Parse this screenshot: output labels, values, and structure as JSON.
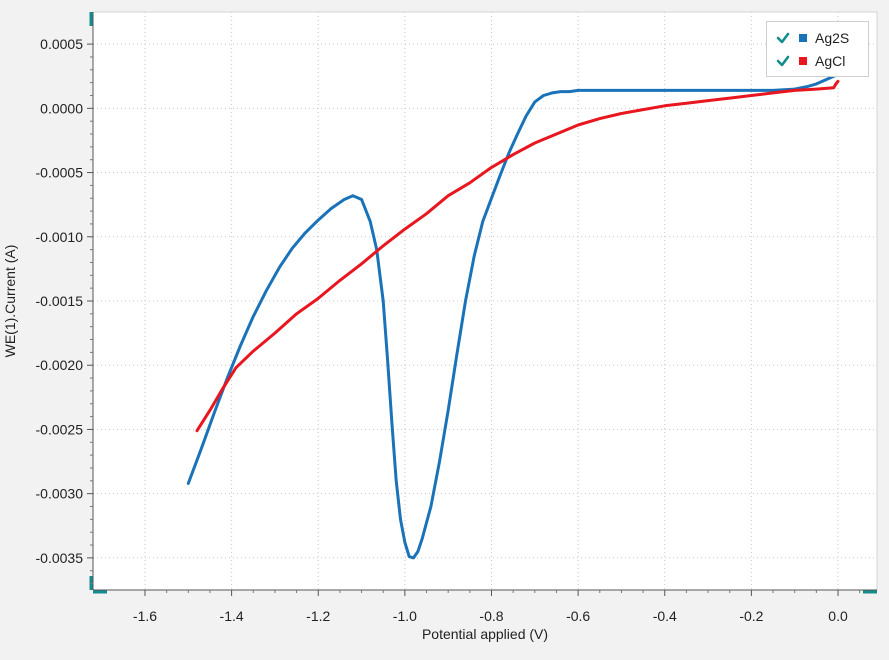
{
  "chart_data": {
    "type": "line",
    "xlabel": "Potential applied (V)",
    "ylabel": "WE(1).Current (A)",
    "xlim": [
      -1.72,
      0.09
    ],
    "ylim": [
      -0.00375,
      0.00075
    ],
    "x_ticks": [
      -1.6,
      -1.4,
      -1.2,
      -1.0,
      -0.8,
      -0.6,
      -0.4,
      -0.2,
      0.0
    ],
    "x_tick_labels": [
      "-1.6",
      "-1.4",
      "-1.2",
      "-1.0",
      "-0.8",
      "-0.6",
      "-0.4",
      "-0.2",
      "0.0"
    ],
    "y_ticks": [
      0.0005,
      0.0,
      -0.0005,
      -0.001,
      -0.0015,
      -0.002,
      -0.0025,
      -0.003,
      -0.0035
    ],
    "y_tick_labels": [
      "0.0005",
      "0.0000",
      "-0.0005",
      "-0.0010",
      "-0.0015",
      "-0.0020",
      "-0.0025",
      "-0.0030",
      "-0.0035"
    ],
    "grid": true,
    "legend_position": "top-right",
    "series": [
      {
        "name": "Ag2S",
        "color": "#1a73b8",
        "x": [
          -1.5,
          -1.47,
          -1.44,
          -1.41,
          -1.38,
          -1.35,
          -1.32,
          -1.29,
          -1.26,
          -1.23,
          -1.2,
          -1.17,
          -1.14,
          -1.12,
          -1.1,
          -1.08,
          -1.065,
          -1.05,
          -1.04,
          -1.03,
          -1.02,
          -1.01,
          -1.0,
          -0.99,
          -0.98,
          -0.97,
          -0.96,
          -0.94,
          -0.92,
          -0.9,
          -0.88,
          -0.86,
          -0.84,
          -0.82,
          -0.8,
          -0.78,
          -0.76,
          -0.74,
          -0.72,
          -0.7,
          -0.68,
          -0.66,
          -0.64,
          -0.62,
          -0.6,
          -0.55,
          -0.5,
          -0.45,
          -0.4,
          -0.35,
          -0.3,
          -0.25,
          -0.2,
          -0.15,
          -0.1,
          -0.07,
          -0.05,
          -0.03,
          -0.01,
          0.0
        ],
        "values": [
          -0.00292,
          -0.00265,
          -0.00237,
          -0.0021,
          -0.00185,
          -0.00162,
          -0.00142,
          -0.00124,
          -0.00109,
          -0.00097,
          -0.00087,
          -0.00078,
          -0.00071,
          -0.00068,
          -0.00071,
          -0.00088,
          -0.0011,
          -0.0015,
          -0.00195,
          -0.00245,
          -0.0029,
          -0.0032,
          -0.00338,
          -0.00349,
          -0.0035,
          -0.00345,
          -0.00335,
          -0.0031,
          -0.00275,
          -0.00235,
          -0.00192,
          -0.0015,
          -0.00115,
          -0.00088,
          -0.0007,
          -0.00052,
          -0.00035,
          -0.0002,
          -6e-05,
          5e-05,
          0.0001,
          0.00012,
          0.00013,
          0.00013,
          0.00014,
          0.00014,
          0.00014,
          0.00014,
          0.00014,
          0.00014,
          0.00014,
          0.00014,
          0.00014,
          0.00014,
          0.00015,
          0.00017,
          0.00019,
          0.00022,
          0.00025,
          0.00026
        ]
      },
      {
        "name": "AgCl",
        "color": "#e8161f",
        "x": [
          -1.48,
          -1.45,
          -1.42,
          -1.39,
          -1.35,
          -1.3,
          -1.25,
          -1.2,
          -1.15,
          -1.1,
          -1.05,
          -1.0,
          -0.95,
          -0.9,
          -0.85,
          -0.8,
          -0.75,
          -0.7,
          -0.65,
          -0.6,
          -0.55,
          -0.5,
          -0.45,
          -0.4,
          -0.35,
          -0.3,
          -0.25,
          -0.2,
          -0.15,
          -0.1,
          -0.05,
          -0.01,
          -0.005,
          0.0
        ],
        "values": [
          -0.00251,
          -0.00235,
          -0.00218,
          -0.00202,
          -0.00189,
          -0.00175,
          -0.0016,
          -0.00148,
          -0.00134,
          -0.00121,
          -0.00107,
          -0.00094,
          -0.00082,
          -0.00068,
          -0.00058,
          -0.00046,
          -0.00036,
          -0.00027,
          -0.0002,
          -0.00013,
          -8e-05,
          -4e-05,
          -1e-05,
          2e-05,
          4e-05,
          6e-05,
          8e-05,
          0.0001,
          0.00012,
          0.00014,
          0.00015,
          0.00016,
          0.00019,
          0.00021
        ]
      }
    ]
  },
  "legend": {
    "items": [
      {
        "label": "Ag2S",
        "color": "#1a73b8",
        "check_color": "#138d8d"
      },
      {
        "label": "AgCl",
        "color": "#e8161f",
        "check_color": "#138d8d"
      }
    ]
  }
}
